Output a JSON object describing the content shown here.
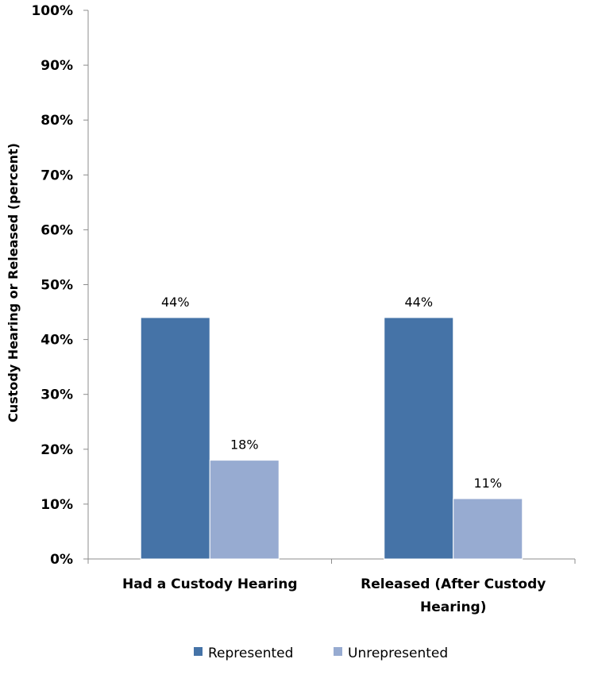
{
  "chart_data": {
    "type": "bar",
    "categories": [
      "Had a Custody Hearing",
      "Released (After Custody Hearing)"
    ],
    "category_lines": [
      [
        "Had a Custody Hearing"
      ],
      [
        "Released (After Custody",
        "Hearing)"
      ]
    ],
    "series": [
      {
        "name": "Represented",
        "values": [
          44,
          44
        ],
        "labels": [
          "44%",
          "44%"
        ],
        "color": "#4573A7"
      },
      {
        "name": "Unrepresented",
        "values": [
          18,
          11
        ],
        "labels": [
          "18%",
          "11%"
        ],
        "color": "#97ABD1"
      }
    ],
    "ylabel": "Custody Hearing or Released (percent)",
    "ylim": [
      0,
      100
    ],
    "yticks": [
      "0%",
      "10%",
      "20%",
      "30%",
      "40%",
      "50%",
      "60%",
      "70%",
      "80%",
      "90%",
      "100%"
    ],
    "grid": false,
    "legend_position": "bottom"
  }
}
